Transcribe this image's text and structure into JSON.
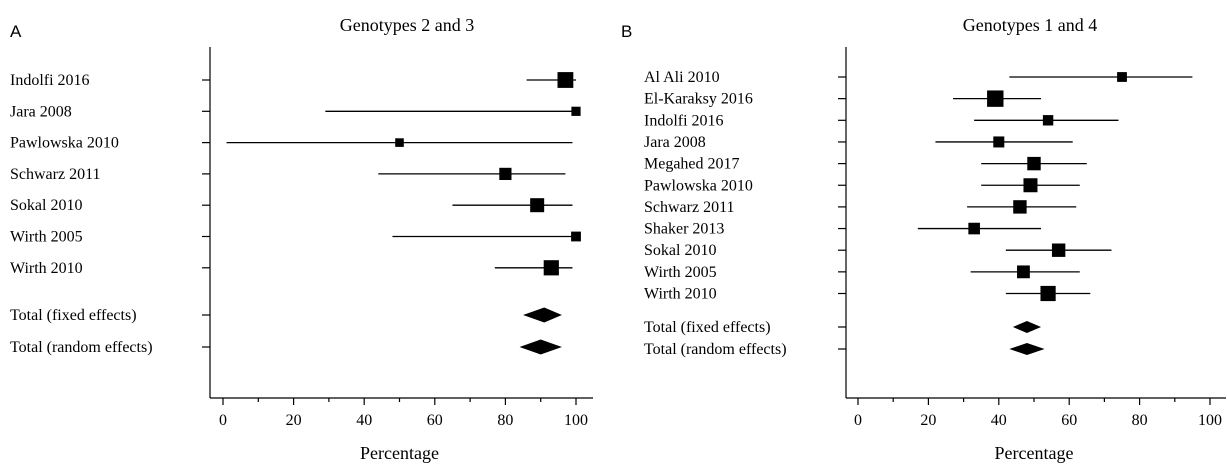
{
  "chart_data": [
    {
      "type": "forest",
      "panel_label": "A",
      "title": "Genotypes 2 and 3",
      "xlabel": "Percentage",
      "xlim": [
        0,
        100
      ],
      "xticks": [
        0,
        20,
        40,
        60,
        80,
        100
      ],
      "studies": [
        {
          "label": "Indolfi 2016",
          "estimate": 97,
          "lower": 86,
          "upper": 100,
          "weight": 0.9
        },
        {
          "label": "Jara 2008",
          "estimate": 100,
          "lower": 29,
          "upper": 100,
          "weight": 0.35
        },
        {
          "label": "Pawlowska 2010",
          "estimate": 50,
          "lower": 1,
          "upper": 99,
          "weight": 0.3
        },
        {
          "label": "Schwarz 2011",
          "estimate": 80,
          "lower": 44,
          "upper": 97,
          "weight": 0.6
        },
        {
          "label": "Sokal 2010",
          "estimate": 89,
          "lower": 65,
          "upper": 99,
          "weight": 0.75
        },
        {
          "label": "Wirth 2005",
          "estimate": 100,
          "lower": 48,
          "upper": 100,
          "weight": 0.4
        },
        {
          "label": "Wirth 2010",
          "estimate": 93,
          "lower": 77,
          "upper": 99,
          "weight": 0.85
        }
      ],
      "pooled": [
        {
          "label": "Total (fixed effects)",
          "estimate": 91,
          "lower": 85,
          "upper": 96
        },
        {
          "label": "Total (random effects)",
          "estimate": 90,
          "lower": 84,
          "upper": 96
        }
      ]
    },
    {
      "type": "forest",
      "panel_label": "B",
      "title": "Genotypes 1 and 4",
      "xlabel": "Percentage",
      "xlim": [
        0,
        100
      ],
      "xticks": [
        0,
        20,
        40,
        60,
        80,
        100
      ],
      "studies": [
        {
          "label": "Al Ali 2010",
          "estimate": 75,
          "lower": 43,
          "upper": 95,
          "weight": 0.4
        },
        {
          "label": "El-Karaksy 2016",
          "estimate": 39,
          "lower": 27,
          "upper": 52,
          "weight": 0.95
        },
        {
          "label": "Indolfi 2016",
          "estimate": 54,
          "lower": 33,
          "upper": 74,
          "weight": 0.45
        },
        {
          "label": "Jara 2008",
          "estimate": 40,
          "lower": 22,
          "upper": 61,
          "weight": 0.5
        },
        {
          "label": "Megahed 2017",
          "estimate": 50,
          "lower": 35,
          "upper": 65,
          "weight": 0.7
        },
        {
          "label": "Pawlowska 2010",
          "estimate": 49,
          "lower": 35,
          "upper": 63,
          "weight": 0.75
        },
        {
          "label": "Schwarz 2011",
          "estimate": 46,
          "lower": 31,
          "upper": 62,
          "weight": 0.7
        },
        {
          "label": "Shaker 2013",
          "estimate": 33,
          "lower": 17,
          "upper": 52,
          "weight": 0.55
        },
        {
          "label": "Sokal 2010",
          "estimate": 57,
          "lower": 42,
          "upper": 72,
          "weight": 0.7
        },
        {
          "label": "Wirth 2005",
          "estimate": 47,
          "lower": 32,
          "upper": 63,
          "weight": 0.65
        },
        {
          "label": "Wirth 2010",
          "estimate": 54,
          "lower": 42,
          "upper": 66,
          "weight": 0.85
        }
      ],
      "pooled": [
        {
          "label": "Total (fixed effects)",
          "estimate": 48,
          "lower": 44,
          "upper": 52
        },
        {
          "label": "Total (random effects)",
          "estimate": 48,
          "lower": 43,
          "upper": 53
        }
      ]
    }
  ]
}
